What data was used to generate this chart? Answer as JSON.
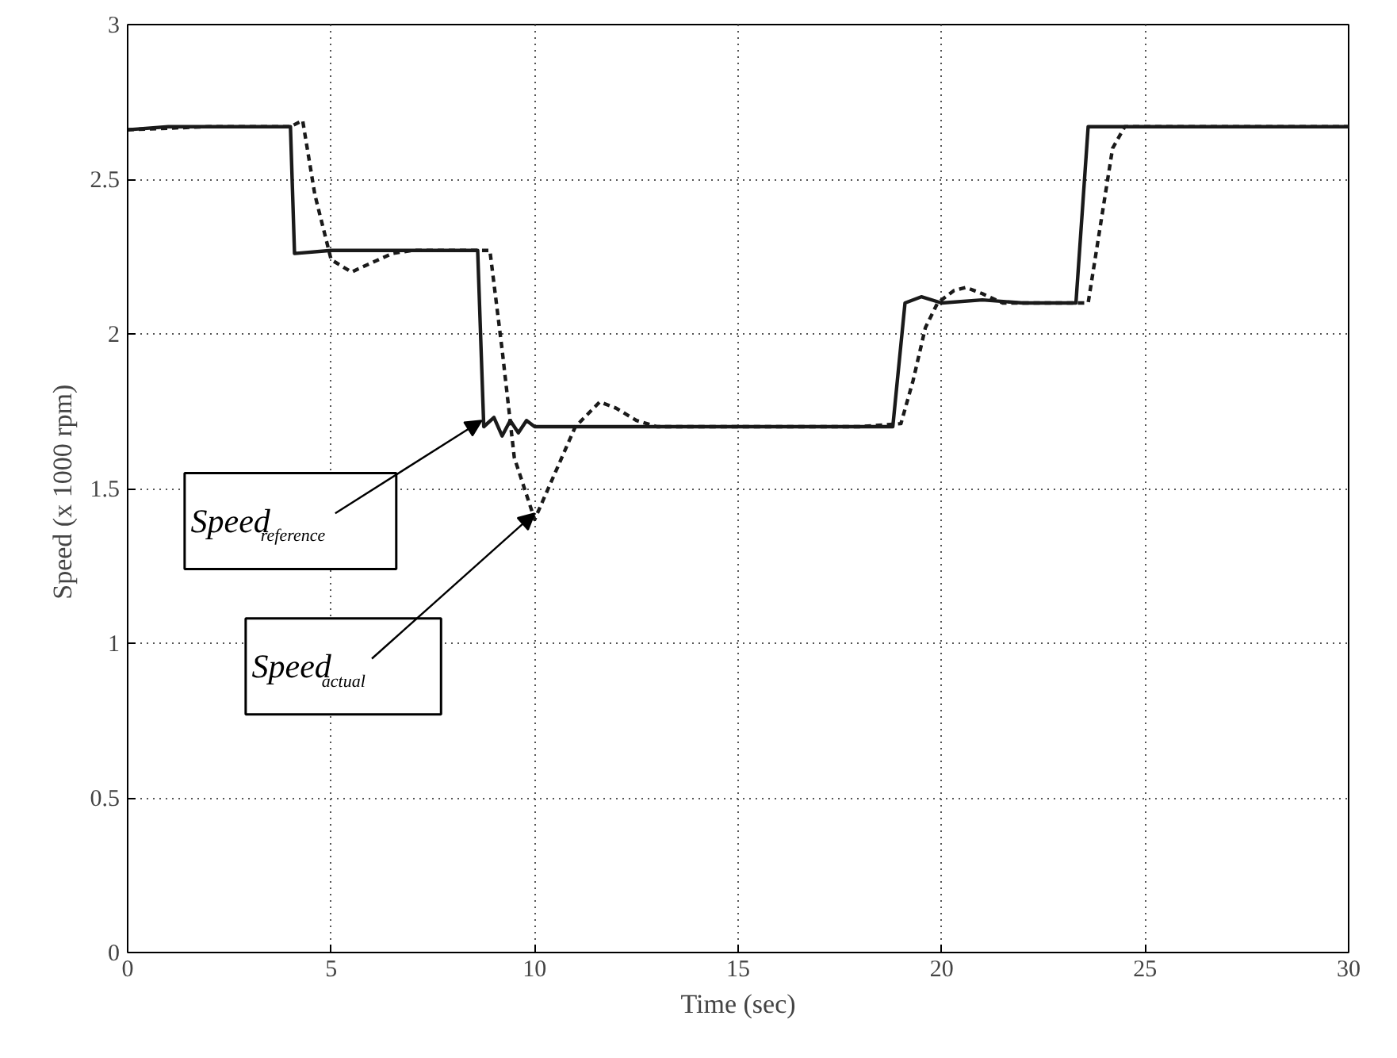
{
  "chart_data": {
    "type": "line",
    "xlabel": "Time (sec)",
    "ylabel": "Speed  (x 1000 rpm)",
    "xlim": [
      0,
      30
    ],
    "ylim": [
      0,
      3
    ],
    "xticks": [
      0,
      5,
      10,
      15,
      20,
      25,
      30
    ],
    "yticks": [
      0,
      0.5,
      1,
      1.5,
      2,
      2.5,
      3
    ],
    "grid": true,
    "series": [
      {
        "color": "#1a1a1a",
        "line_style": "solid",
        "x": [
          0,
          1,
          2,
          3,
          4.0,
          4.1,
          5,
          6,
          7,
          8,
          8.6,
          8.75,
          9.0,
          9.2,
          9.4,
          9.6,
          9.8,
          10,
          11,
          12,
          13,
          14,
          15,
          16,
          17,
          18,
          18.8,
          19.1,
          19.5,
          20,
          21,
          22,
          23,
          23.3,
          23.6,
          25,
          26,
          27,
          28,
          29,
          30
        ],
        "values": [
          2.66,
          2.67,
          2.67,
          2.67,
          2.67,
          2.26,
          2.27,
          2.27,
          2.27,
          2.27,
          2.27,
          1.7,
          1.73,
          1.67,
          1.72,
          1.68,
          1.72,
          1.7,
          1.7,
          1.7,
          1.7,
          1.7,
          1.7,
          1.7,
          1.7,
          1.7,
          1.7,
          2.1,
          2.12,
          2.1,
          2.11,
          2.1,
          2.1,
          2.1,
          2.67,
          2.67,
          2.67,
          2.67,
          2.67,
          2.67,
          2.67
        ]
      },
      {
        "color": "#1a1a1a",
        "line_style": "dashed",
        "x": [
          0,
          2,
          4.0,
          4.3,
          4.6,
          5.0,
          5.5,
          6.0,
          6.5,
          7,
          8,
          8.9,
          9.2,
          9.5,
          10.0,
          10.5,
          11.0,
          11.6,
          12.0,
          12.5,
          13,
          15,
          17,
          18,
          19.0,
          19.3,
          19.6,
          19.9,
          20.3,
          20.6,
          21.0,
          21.5,
          22,
          23,
          23.6,
          23.9,
          24.2,
          24.5,
          25,
          27,
          30
        ],
        "values": [
          2.66,
          2.67,
          2.67,
          2.69,
          2.45,
          2.24,
          2.2,
          2.23,
          2.26,
          2.27,
          2.27,
          2.27,
          1.95,
          1.6,
          1.4,
          1.55,
          1.7,
          1.78,
          1.76,
          1.72,
          1.7,
          1.7,
          1.7,
          1.7,
          1.71,
          1.85,
          2.02,
          2.1,
          2.14,
          2.15,
          2.13,
          2.1,
          2.1,
          2.1,
          2.1,
          2.35,
          2.6,
          2.67,
          2.67,
          2.67,
          2.67
        ]
      }
    ],
    "annotations": [
      {
        "text": "Speed$_{reference}$",
        "x": 8.7,
        "y": 1.72
      },
      {
        "text": "Speed$_{actual}$",
        "x": 10.0,
        "y": 1.42
      }
    ]
  }
}
